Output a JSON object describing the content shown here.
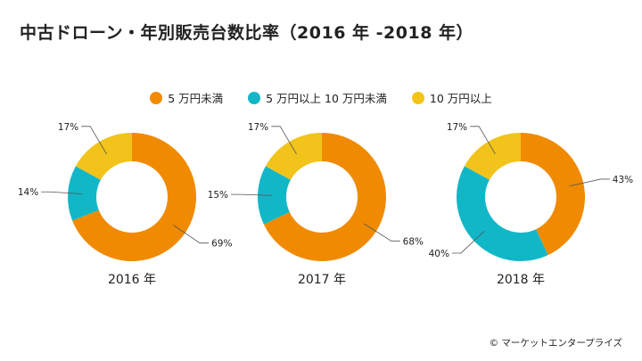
{
  "page": {
    "title": "中古ドローン・年別販売台数比率（2016 年 -2018 年）",
    "copyright": "© マーケットエンタープライズ"
  },
  "colors": {
    "orange": "#F08A00",
    "teal": "#12B7C7",
    "yellow": "#F2C31A",
    "leader": "#555555",
    "text": "#222222"
  },
  "legend": [
    {
      "label": "5 万円未満",
      "color": "#F08A00"
    },
    {
      "label": "5 万円以上 10 万円未満",
      "color": "#12B7C7"
    },
    {
      "label": "10 万円以上",
      "color": "#F2C31A"
    }
  ],
  "chart_data": [
    {
      "type": "pie",
      "title": "2016 年",
      "slices": [
        {
          "label": "5 万円未満",
          "value": 69,
          "value_label": "69%"
        },
        {
          "label": "5 万円以上 10 万円未満",
          "value": 14,
          "value_label": "14%"
        },
        {
          "label": "10 万円以上",
          "value": 17,
          "value_label": "17%"
        }
      ]
    },
    {
      "type": "pie",
      "title": "2017 年",
      "slices": [
        {
          "label": "5 万円未満",
          "value": 68,
          "value_label": "68%"
        },
        {
          "label": "5 万円以上 10 万円未満",
          "value": 15,
          "value_label": "15%"
        },
        {
          "label": "10 万円以上",
          "value": 17,
          "value_label": "17%"
        }
      ]
    },
    {
      "type": "pie",
      "title": "2018 年",
      "slices": [
        {
          "label": "5 万円未満",
          "value": 43,
          "value_label": "43%"
        },
        {
          "label": "5 万円以上 10 万円未満",
          "value": 40,
          "value_label": "40%"
        },
        {
          "label": "10 万円以上",
          "value": 17,
          "value_label": "17%"
        }
      ]
    }
  ]
}
